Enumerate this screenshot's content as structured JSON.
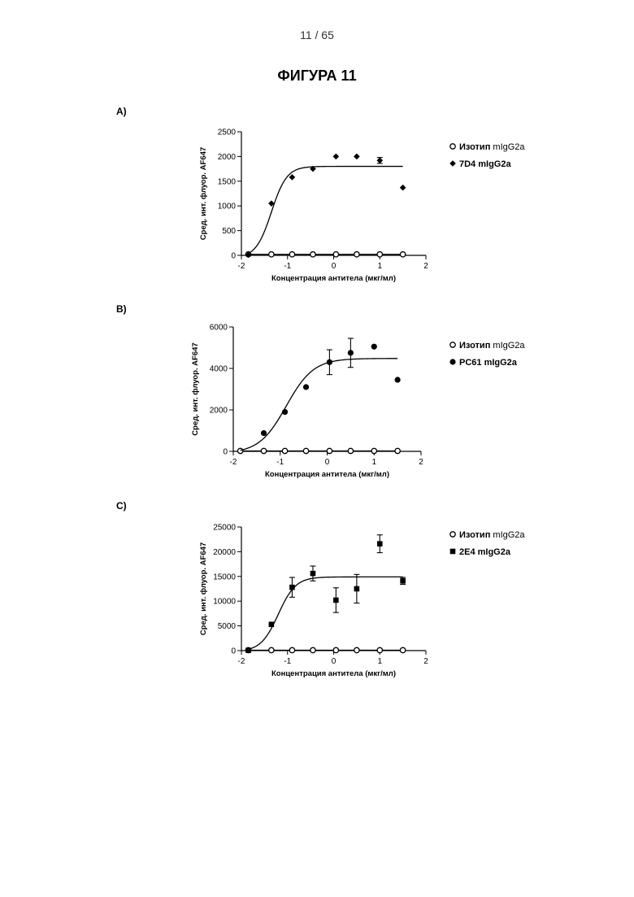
{
  "header": {
    "page_number": "11 / 65",
    "figure_title": "ФИГУРА 11"
  },
  "chart_data": [
    {
      "panel_label": "A)",
      "type": "scatter",
      "xlabel": "Концентрация антитела (мкг/мл)",
      "ylabel": "Сред. инт. флуор. AF647",
      "xlim": [
        -2,
        2
      ],
      "ylim": [
        0,
        2500
      ],
      "x_ticks": [
        "-2",
        "-1",
        "0",
        "1",
        "2"
      ],
      "y_ticks": [
        "0",
        "500",
        "1000",
        "1500",
        "2000",
        "2500"
      ],
      "x_tick_values": [
        -2,
        -1,
        0,
        1,
        2
      ],
      "y_tick_values": [
        0,
        500,
        1000,
        1500,
        2000,
        2500
      ],
      "legend_position": "right",
      "series": [
        {
          "name_bold": "Изотип",
          "name_rest": " mIgG2a",
          "marker": "open-circle",
          "x": [
            -1.85,
            -1.35,
            -0.9,
            -0.45,
            0.05,
            0.5,
            1.0,
            1.5
          ],
          "y": [
            20,
            20,
            20,
            20,
            20,
            20,
            20,
            20
          ],
          "fit": {
            "bottom": 20,
            "top": 20,
            "ec50": -1.2,
            "hill": 2.5,
            "x_start": -1.85,
            "x_end": 1.5
          }
        },
        {
          "name_bold": "7D4 mIgG2a",
          "name_rest": "",
          "marker": "diamond",
          "x": [
            -1.85,
            -1.35,
            -0.9,
            -0.45,
            0.05,
            0.5,
            1.0,
            1.5
          ],
          "y": [
            10,
            1050,
            1580,
            1750,
            2000,
            2000,
            1920,
            1370
          ],
          "err": [
            0,
            0,
            0,
            0,
            0,
            0,
            60,
            0
          ],
          "fit": {
            "bottom": -50,
            "top": 1800,
            "ec50": -1.35,
            "hill": 2.6,
            "x_start": -1.8,
            "x_end": 1.5
          }
        }
      ]
    },
    {
      "panel_label": "B)",
      "type": "scatter",
      "xlabel": "Концентрация антитела (мкг/мл)",
      "ylabel": "Сред. инт. флуор. AF647",
      "xlim": [
        -2,
        2
      ],
      "ylim": [
        0,
        6000
      ],
      "x_ticks": [
        "-2",
        "-1",
        "0",
        "1",
        "2"
      ],
      "y_ticks": [
        "0",
        "2000",
        "4000",
        "6000"
      ],
      "x_tick_values": [
        -2,
        -1,
        0,
        1,
        2
      ],
      "y_tick_values": [
        0,
        2000,
        4000,
        6000
      ],
      "legend_position": "right",
      "series": [
        {
          "name_bold": "Изотип",
          "name_rest": " mIgG2a",
          "marker": "open-circle",
          "x": [
            -1.85,
            -1.35,
            -0.9,
            -0.45,
            0.05,
            0.5,
            1.0,
            1.5
          ],
          "y": [
            20,
            20,
            20,
            20,
            20,
            20,
            20,
            20
          ],
          "fit": {
            "bottom": 20,
            "top": 20,
            "ec50": -1.0,
            "hill": 1.5,
            "x_start": -1.85,
            "x_end": 1.5
          }
        },
        {
          "name_bold": "PC61 mIgG2a",
          "name_rest": "",
          "marker": "filled-circle",
          "x": [
            -1.35,
            -0.9,
            -0.45,
            0.05,
            0.5,
            1.0,
            1.5
          ],
          "y": [
            880,
            1900,
            3100,
            4300,
            4750,
            5050,
            3450
          ],
          "err": [
            0,
            0,
            0,
            600,
            700,
            0,
            0
          ],
          "fit": {
            "bottom": -100,
            "top": 4480,
            "ec50": -0.87,
            "hill": 1.5,
            "x_start": -1.85,
            "x_end": 1.5
          }
        }
      ]
    },
    {
      "panel_label": "C)",
      "type": "scatter",
      "xlabel": "Концентрация антитела (мкг/мл)",
      "ylabel": "Сред. инт. флуор. AF647",
      "xlim": [
        -2,
        2
      ],
      "ylim": [
        0,
        25000
      ],
      "x_ticks": [
        "-2",
        "-1",
        "0",
        "1",
        "2"
      ],
      "y_ticks": [
        "0",
        "5000",
        "10000",
        "15000",
        "20000",
        "25000"
      ],
      "x_tick_values": [
        -2,
        -1,
        0,
        1,
        2
      ],
      "y_tick_values": [
        0,
        5000,
        10000,
        15000,
        20000,
        25000
      ],
      "legend_position": "right",
      "series": [
        {
          "name_bold": "Изотип",
          "name_rest": " mIgG2a",
          "marker": "open-circle",
          "x": [
            -1.85,
            -1.35,
            -0.9,
            -0.45,
            0.05,
            0.5,
            1.0,
            1.5
          ],
          "y": [
            80,
            80,
            80,
            80,
            80,
            80,
            80,
            80
          ],
          "fit": {
            "bottom": 80,
            "top": 80,
            "ec50": -1.2,
            "hill": 2.5,
            "x_start": -1.85,
            "x_end": 1.5
          }
        },
        {
          "name_bold": "2E4 mIgG2a",
          "name_rest": "",
          "marker": "square",
          "x": [
            -1.85,
            -1.35,
            -0.9,
            -0.45,
            0.05,
            0.5,
            1.0,
            1.5
          ],
          "y": [
            50,
            5300,
            12800,
            15600,
            10200,
            12500,
            21600,
            14100
          ],
          "err": [
            0,
            0,
            2000,
            1500,
            2500,
            2900,
            1800,
            700
          ],
          "fit": {
            "bottom": -200,
            "top": 14900,
            "ec50": -1.2,
            "hill": 2.3,
            "x_start": -1.8,
            "x_end": 1.5
          }
        }
      ]
    }
  ]
}
